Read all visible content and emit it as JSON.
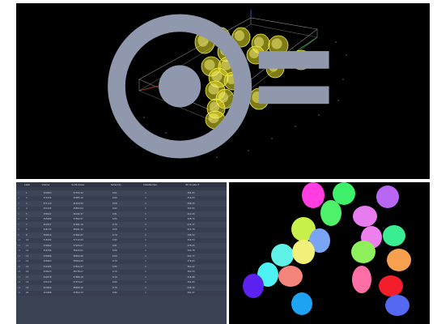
{
  "table": {
    "columns": [
      "",
      "Label",
      "Volume",
      "Surfacearea",
      "Sphericity",
      "SubeNumber",
      "Rfi Cnuete H"
    ],
    "rows": [
      [
        "1",
        "1",
        "309993",
        "37355.32",
        "0.81",
        "1",
        "384.83"
      ],
      [
        "2",
        "2",
        "371534",
        "39985.10",
        "0.80",
        "1",
        "316.53"
      ],
      [
        "3",
        "3",
        "371110",
        "41024.59",
        "0.80",
        "1",
        "309.43"
      ],
      [
        "4",
        "4",
        "321245",
        "35893.04",
        "0.82",
        "1",
        "302.93"
      ],
      [
        "5",
        "5",
        "338247",
        "36192.37",
        "0.81",
        "1",
        "412.45"
      ],
      [
        "6",
        "6",
        "355089",
        "37802.07",
        "0.80",
        "1",
        "328.74"
      ],
      [
        "7",
        "7",
        "322817",
        "37961.18",
        "0.79",
        "1",
        "274.17"
      ],
      [
        "8",
        "8",
        "346733",
        "38021.32",
        "0.80",
        "1",
        "213.78"
      ],
      [
        "9",
        "9",
        "359414",
        "37842.67",
        "0.79",
        "1",
        "194.52"
      ],
      [
        "10",
        "10",
        "318192",
        "37112.09",
        "0.80",
        "1",
        "334.53"
      ],
      [
        "11",
        "11",
        "339062",
        "37924.07",
        "0.81",
        "1",
        "278.25"
      ],
      [
        "12",
        "12",
        "356786",
        "38229.01",
        "0.80",
        "1",
        "303.78"
      ],
      [
        "13",
        "13",
        "335686",
        "38052.98",
        "0.80",
        "1",
        "291.77"
      ],
      [
        "14",
        "14",
        "328463",
        "38094.09",
        "0.79",
        "1",
        "379.63"
      ],
      [
        "15",
        "15",
        "311085",
        "37814.97",
        "0.80",
        "1",
        "361.22"
      ],
      [
        "16",
        "16",
        "339023",
        "38778.07",
        "0.79",
        "1",
        "302.53"
      ],
      [
        "17",
        "17",
        "340378",
        "37886.18",
        "0.79",
        "1",
        "318.98"
      ],
      [
        "18",
        "18",
        "335179",
        "37974.07",
        "0.80",
        "1",
        "302.83"
      ],
      [
        "19",
        "19",
        "323624",
        "38489.16",
        "0.79",
        "1",
        "249.14"
      ],
      [
        "20",
        "20",
        "323988",
        "37854.79",
        "0.80",
        "1",
        "281.47"
      ]
    ]
  },
  "colors": {
    "panel_bg": "#000000",
    "table_bg": "#3a4253",
    "blob_yellow": "#e8e02a",
    "seg_colors": [
      "#ff3de0",
      "#3ef06a",
      "#b966f5",
      "#4ff06a",
      "#e77bf0",
      "#c7f04a",
      "#7aa5f5",
      "#ee80ee",
      "#3aed93",
      "#8ef05a",
      "#5ff2e6",
      "#f2f07a",
      "#f7a050",
      "#4ff2f2",
      "#f5857a",
      "#ff6fa6",
      "#f21f2a",
      "#5568f0",
      "#5b22f0",
      "#1ea2f2"
    ]
  },
  "icons": {
    "logo": "brand-logo-icon"
  }
}
